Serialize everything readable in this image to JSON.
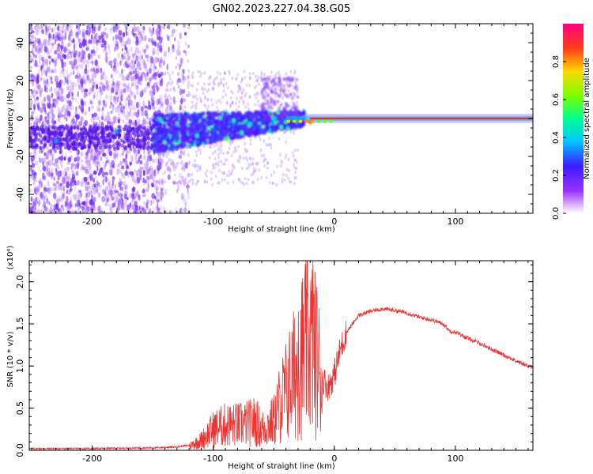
{
  "title": "GN02.2023.227.04.38.G05",
  "spectrogram": {
    "xlabel": "Height of straight line (km)",
    "ylabel": "Frequency (Hz)",
    "xlim": [
      -252,
      164
    ],
    "ylim": [
      -50,
      50
    ],
    "xticks": [
      -200,
      -100,
      0,
      100
    ],
    "yticks": [
      -40,
      -20,
      0,
      20,
      40
    ],
    "colorbar": {
      "label": "Normalized spectral amplitude",
      "ticks": [
        "0.0",
        "0.2",
        "0.4",
        "0.6",
        "0.8"
      ],
      "range": [
        0,
        1
      ]
    }
  },
  "chart_data": [
    {
      "type": "heatmap",
      "title": "GN02.2023.227.04.38.G05",
      "xlabel": "Height of straight line (km)",
      "ylabel": "Frequency (Hz)",
      "xlim": [
        -252,
        164
      ],
      "ylim": [
        -50,
        50
      ],
      "colorbar_label": "Normalized spectral amplitude",
      "description_points": [
        {
          "x": -230,
          "y": -12,
          "amp": 0.35
        },
        {
          "x": -180,
          "y": -7,
          "amp": 0.35
        },
        {
          "x": -100,
          "y": -6,
          "amp": 0.3
        },
        {
          "x": -70,
          "y": -3,
          "amp": 0.45
        },
        {
          "x": -50,
          "y": 0,
          "amp": 0.4
        },
        {
          "x": -20,
          "y": -2,
          "amp": 0.8
        },
        {
          "x": 0,
          "y": 0,
          "amp": 0.9
        },
        {
          "x": 50,
          "y": 0,
          "amp": 0.9
        },
        {
          "x": 100,
          "y": 0,
          "amp": 0.9
        },
        {
          "x": 160,
          "y": 0,
          "amp": 0.9
        }
      ]
    },
    {
      "type": "line",
      "xlabel": "Height of straight line (km)",
      "ylabel": "SNR (10 * v/v)",
      "ylabel_multiplier": "(x10⁴)",
      "xlim": [
        -252,
        164
      ],
      "ylim": [
        0,
        2.25
      ],
      "yticks": [
        "0.0",
        "0.5",
        "1.0",
        "1.5",
        "2.0"
      ],
      "xticks": [
        -200,
        -100,
        0,
        100
      ],
      "color": "#ee3333",
      "series": [
        {
          "x": [
            -252,
            -200,
            -150,
            -130,
            -120,
            -110,
            -100,
            -90,
            -80,
            -70,
            -65,
            -60,
            -50,
            -45,
            -40,
            -35,
            -30,
            -25,
            -20,
            -15,
            -10,
            -5,
            0,
            5,
            10,
            20,
            30,
            40,
            50,
            60,
            70,
            80,
            90,
            95,
            100,
            110,
            120,
            130,
            140,
            150,
            164
          ],
          "y": [
            0.01,
            0.01,
            0.02,
            0.03,
            0.05,
            0.12,
            0.25,
            0.3,
            0.3,
            0.32,
            0.35,
            0.25,
            0.35,
            0.55,
            0.7,
            0.85,
            1.0,
            1.2,
            1.3,
            1.1,
            0.85,
            0.75,
            0.9,
            1.2,
            1.4,
            1.6,
            1.65,
            1.68,
            1.66,
            1.63,
            1.58,
            1.55,
            1.5,
            1.42,
            1.4,
            1.33,
            1.27,
            1.2,
            1.13,
            1.06,
            0.98
          ]
        }
      ]
    }
  ],
  "colors": {
    "snr_line": "#ee3333",
    "axes": "#000000"
  }
}
